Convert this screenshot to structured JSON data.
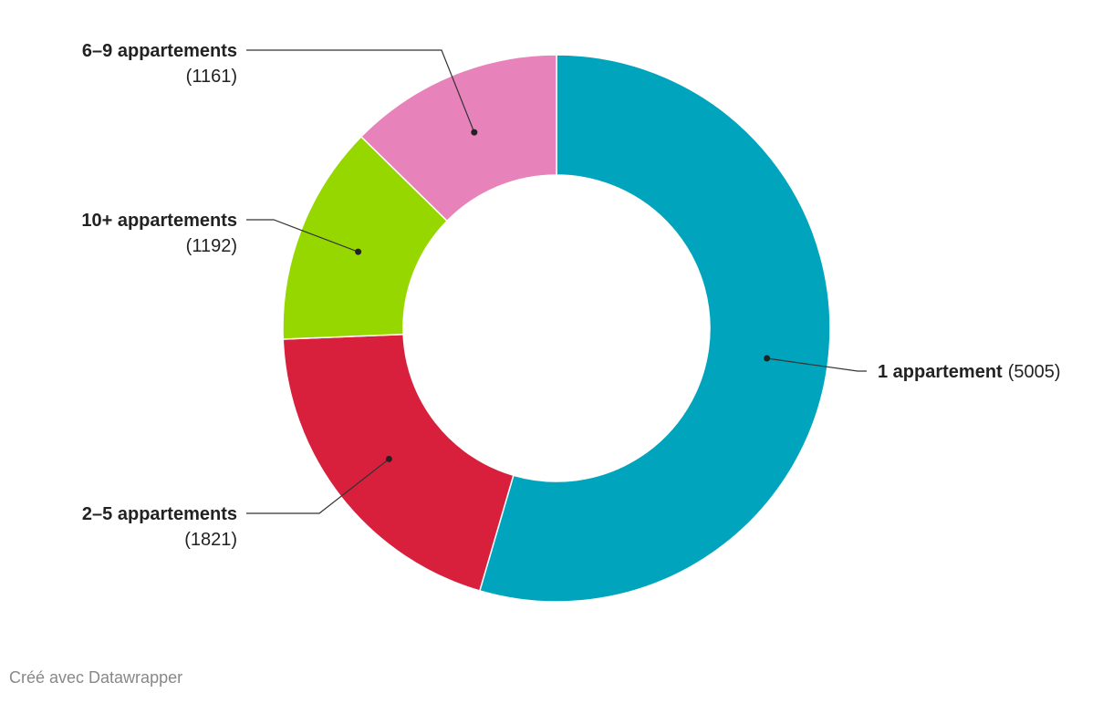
{
  "chart_data": {
    "type": "donut",
    "categories": [
      "1 appartement",
      "2–5 appartements",
      "10+ appartements",
      "6–9 appartements"
    ],
    "values": [
      5005,
      1821,
      1192,
      1161
    ],
    "value_labels": [
      "(5005)",
      "(1821)",
      "(1192)",
      "(1161)"
    ],
    "colors": [
      "#00a5bd",
      "#d8203d",
      "#97d700",
      "#e882ba"
    ]
  },
  "footer": "Créé avec Datawrapper"
}
